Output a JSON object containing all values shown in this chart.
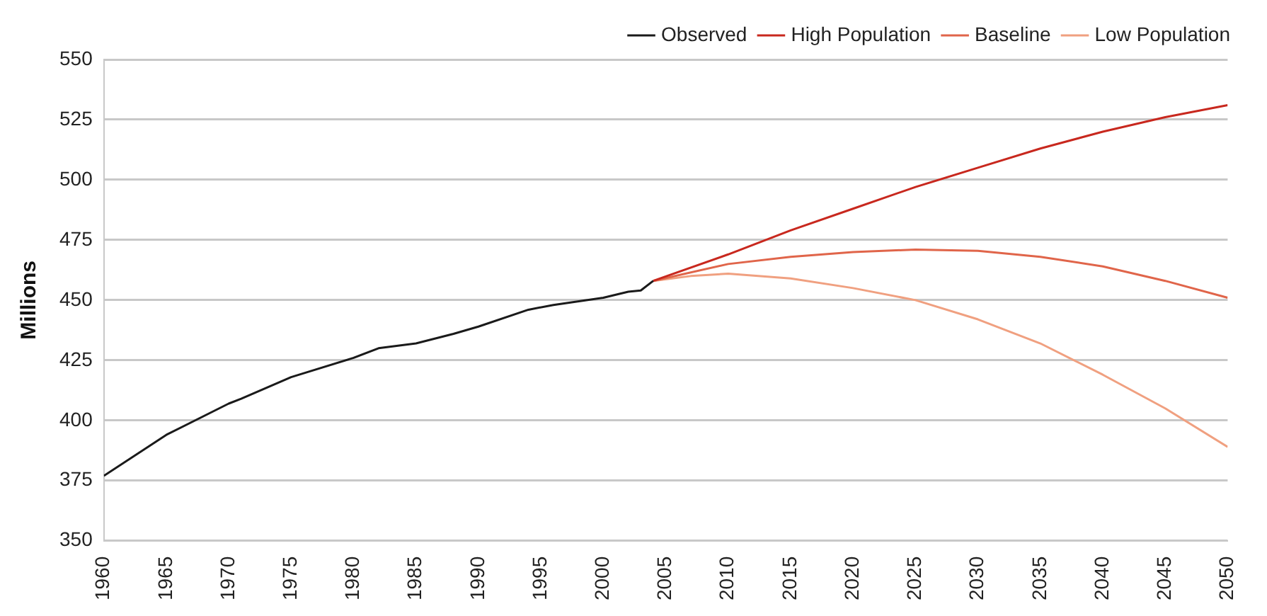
{
  "chart_data": {
    "type": "line",
    "ylabel": "Millions",
    "xlim": [
      1960,
      2050
    ],
    "xticks": [
      1960,
      1965,
      1970,
      1975,
      1980,
      1985,
      1990,
      1995,
      2000,
      2005,
      2010,
      2015,
      2020,
      2025,
      2030,
      2035,
      2040,
      2045,
      2050
    ],
    "ylim": [
      350,
      550
    ],
    "yticks": [
      350,
      375,
      400,
      425,
      450,
      475,
      500,
      525,
      550
    ],
    "grid": "y",
    "legend": "top right",
    "marker": "none",
    "line_style": "solid",
    "series": [
      {
        "name": "Observed",
        "color": "#1a1a1a",
        "x": [
          1960,
          1965,
          1970,
          1971,
          1975,
          1980,
          1982,
          1985,
          1988,
          1990,
          1994,
          1996,
          2000,
          2002,
          2003,
          2004
        ],
        "values": [
          377,
          394,
          407,
          409,
          418,
          426,
          430,
          432,
          436,
          439,
          446,
          448,
          451,
          453.5,
          454,
          458
        ]
      },
      {
        "name": "High Population",
        "color": "#c8281e",
        "x": [
          2004,
          2010,
          2015,
          2020,
          2025,
          2030,
          2035,
          2040,
          2045,
          2050
        ],
        "values": [
          458,
          469,
          479,
          488,
          497,
          505,
          513,
          520,
          526,
          531
        ]
      },
      {
        "name": "Baseline",
        "color": "#e0654a",
        "x": [
          2004,
          2010,
          2015,
          2020,
          2025,
          2030,
          2035,
          2040,
          2045,
          2050
        ],
        "values": [
          458,
          465,
          468,
          470,
          471,
          470.5,
          468,
          464,
          458,
          451
        ]
      },
      {
        "name": "Low Population",
        "color": "#f0a080",
        "x": [
          2004,
          2007,
          2010,
          2015,
          2020,
          2025,
          2030,
          2035,
          2040,
          2045,
          2050
        ],
        "values": [
          458,
          460,
          461,
          459,
          455,
          450,
          442,
          432,
          419,
          405,
          389
        ]
      }
    ]
  }
}
